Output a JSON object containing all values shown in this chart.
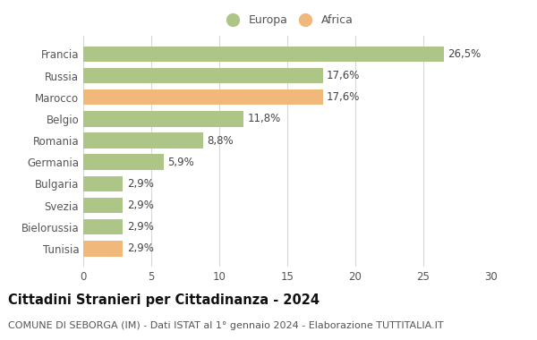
{
  "categories": [
    "Tunisia",
    "Bielorussia",
    "Svezia",
    "Bulgaria",
    "Germania",
    "Romania",
    "Belgio",
    "Marocco",
    "Russia",
    "Francia"
  ],
  "values": [
    2.9,
    2.9,
    2.9,
    2.9,
    5.9,
    8.8,
    11.8,
    17.6,
    17.6,
    26.5
  ],
  "colors": [
    "#f0b87a",
    "#adc688",
    "#adc688",
    "#adc688",
    "#adc688",
    "#adc688",
    "#adc688",
    "#f0b87a",
    "#adc688",
    "#adc688"
  ],
  "labels": [
    "2,9%",
    "2,9%",
    "2,9%",
    "2,9%",
    "5,9%",
    "8,8%",
    "11,8%",
    "17,6%",
    "17,6%",
    "26,5%"
  ],
  "europa_color": "#adc688",
  "africa_color": "#f0b87a",
  "bg_color": "#ffffff",
  "grid_color": "#d8d8d8",
  "title": "Cittadini Stranieri per Cittadinanza - 2024",
  "subtitle": "COMUNE DI SEBORGA (IM) - Dati ISTAT al 1° gennaio 2024 - Elaborazione TUTTITALIA.IT",
  "xlim": [
    0,
    30
  ],
  "xticks": [
    0,
    5,
    10,
    15,
    20,
    25,
    30
  ],
  "legend_europa": "Europa",
  "legend_africa": "Africa",
  "bar_height": 0.72,
  "label_fontsize": 8.5,
  "title_fontsize": 10.5,
  "subtitle_fontsize": 8.0,
  "tick_fontsize": 8.5,
  "ytick_fontsize": 8.5
}
